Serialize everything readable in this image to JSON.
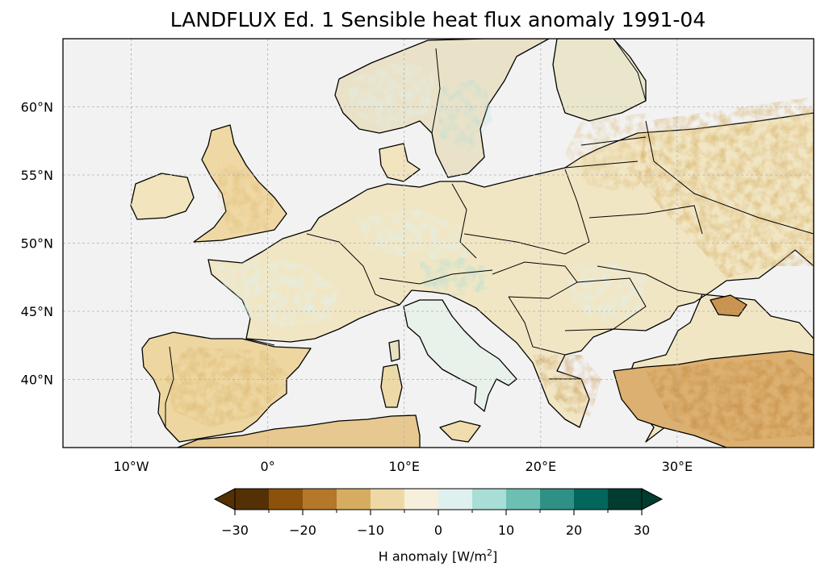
{
  "title": "LANDFLUX Ed. 1 Sensible heat flux anomaly 1991-04",
  "colors": {
    "ocean": "#f2f2f2",
    "grid": "#b0b0b0",
    "coast": "#000000"
  },
  "map": {
    "lon_range": [
      -15,
      40
    ],
    "lat_range": [
      35,
      65
    ],
    "lon_ticks": [
      {
        "value": -10,
        "label": "10°W"
      },
      {
        "value": 0,
        "label": "0°"
      },
      {
        "value": 10,
        "label": "10°E"
      },
      {
        "value": 20,
        "label": "20°E"
      },
      {
        "value": 30,
        "label": "30°E"
      }
    ],
    "lat_ticks": [
      {
        "value": 40,
        "label": "40°N"
      },
      {
        "value": 45,
        "label": "45°N"
      },
      {
        "value": 50,
        "label": "50°N"
      },
      {
        "value": 55,
        "label": "55°N"
      },
      {
        "value": 60,
        "label": "60°N"
      }
    ]
  },
  "colorbar": {
    "label_main": "H anomaly [W/m",
    "label_sup": "2",
    "label_end": "]",
    "range": [
      -30,
      30
    ],
    "step": 5,
    "colors": [
      "#543005",
      "#8c510a",
      "#b5772a",
      "#d6ad60",
      "#eed9a6",
      "#f5efdc",
      "#dff1ee",
      "#a9ded6",
      "#6dbfb3",
      "#2f9086",
      "#02665d",
      "#003c30"
    ],
    "extend": "both",
    "ticks": [
      {
        "value": -30,
        "label": "−30"
      },
      {
        "value": -20,
        "label": "−20"
      },
      {
        "value": -10,
        "label": "−10"
      },
      {
        "value": 0,
        "label": "0"
      },
      {
        "value": 10,
        "label": "10"
      },
      {
        "value": 20,
        "label": "20"
      },
      {
        "value": 30,
        "label": "30"
      }
    ]
  }
}
